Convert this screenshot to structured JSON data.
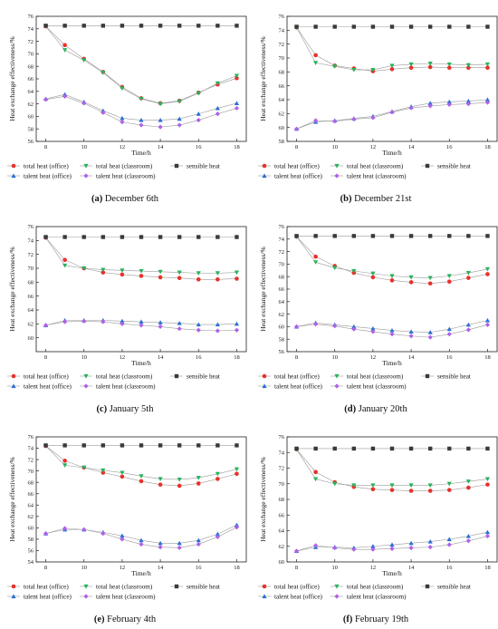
{
  "chart_data": [
    {
      "type": "line",
      "caption_letter": "(a)",
      "caption_text": " December 6th",
      "xlabel": "Time/h",
      "ylabel": "Heat exchange effectiveness/%",
      "x": [
        8,
        9,
        10,
        11,
        12,
        13,
        14,
        15,
        16,
        17,
        18
      ],
      "xlim": [
        7.5,
        18.5
      ],
      "ylim": [
        56,
        76
      ],
      "xticks": [
        8,
        10,
        12,
        14,
        16,
        18
      ],
      "yticks": [
        56,
        58,
        60,
        62,
        64,
        66,
        68,
        70,
        72,
        74,
        76
      ],
      "series": [
        {
          "name": "total heat (office)",
          "values": [
            74.4,
            71.4,
            69.2,
            67.1,
            64.7,
            62.9,
            62.1,
            62.5,
            63.8,
            65.1,
            66.1
          ]
        },
        {
          "name": "total heat (classroom)",
          "values": [
            74.4,
            70.6,
            69.0,
            67.0,
            64.5,
            62.8,
            62.0,
            62.4,
            63.7,
            65.3,
            66.5
          ]
        },
        {
          "name": "sensible heat",
          "values": [
            74.5,
            74.5,
            74.5,
            74.5,
            74.5,
            74.5,
            74.5,
            74.5,
            74.5,
            74.5,
            74.5
          ]
        },
        {
          "name": "talent heat (office)",
          "values": [
            62.8,
            63.5,
            62.3,
            60.9,
            59.7,
            59.4,
            59.4,
            59.6,
            60.4,
            61.3,
            62.1
          ]
        },
        {
          "name": "talent heat (classroom)",
          "values": [
            62.7,
            63.2,
            62.1,
            60.6,
            59.1,
            58.6,
            58.3,
            58.6,
            59.4,
            60.4,
            61.3
          ]
        }
      ]
    },
    {
      "type": "line",
      "caption_letter": "(b)",
      "caption_text": " December 21st",
      "xlabel": "Time/h",
      "ylabel": "Heat exchange effectiveness/%",
      "x": [
        8,
        9,
        10,
        11,
        12,
        13,
        14,
        15,
        16,
        17,
        18
      ],
      "xlim": [
        7.5,
        18.5
      ],
      "ylim": [
        58,
        76
      ],
      "xticks": [
        8,
        10,
        12,
        14,
        16,
        18
      ],
      "yticks": [
        58,
        60,
        62,
        64,
        66,
        68,
        70,
        72,
        74,
        76
      ],
      "series": [
        {
          "name": "total heat (office)",
          "values": [
            74.4,
            70.4,
            68.9,
            68.5,
            68.1,
            68.4,
            68.6,
            68.7,
            68.6,
            68.6,
            68.6
          ]
        },
        {
          "name": "total heat (classroom)",
          "values": [
            74.4,
            69.3,
            68.8,
            68.3,
            68.3,
            68.9,
            69.1,
            69.2,
            69.1,
            69.0,
            69.1
          ]
        },
        {
          "name": "sensible heat",
          "values": [
            74.5,
            74.5,
            74.5,
            74.5,
            74.5,
            74.5,
            74.5,
            74.5,
            74.5,
            74.5,
            74.5
          ]
        },
        {
          "name": "talent heat (office)",
          "values": [
            59.8,
            60.8,
            61.0,
            61.3,
            61.6,
            62.3,
            63.0,
            63.5,
            63.7,
            63.8,
            64.0
          ]
        },
        {
          "name": "talent heat (classroom)",
          "values": [
            59.8,
            61.0,
            60.9,
            61.2,
            61.4,
            62.2,
            62.8,
            63.1,
            63.3,
            63.4,
            63.6
          ]
        }
      ]
    },
    {
      "type": "line",
      "caption_letter": "(c)",
      "caption_text": " January 5th",
      "xlabel": "Time/h",
      "ylabel": "Heat exchange effectiveness/%",
      "x": [
        8,
        9,
        10,
        11,
        12,
        13,
        14,
        15,
        16,
        17,
        18
      ],
      "xlim": [
        7.5,
        18.5
      ],
      "ylim": [
        58,
        76
      ],
      "xticks": [
        8,
        10,
        12,
        14,
        16,
        18
      ],
      "yticks": [
        60,
        62,
        64,
        66,
        68,
        70,
        72,
        74,
        76
      ],
      "series": [
        {
          "name": "total heat (office)",
          "values": [
            74.4,
            71.2,
            70.0,
            69.4,
            69.1,
            68.9,
            68.7,
            68.6,
            68.4,
            68.4,
            68.5
          ]
        },
        {
          "name": "total heat (classroom)",
          "values": [
            74.4,
            70.4,
            70.0,
            69.8,
            69.7,
            69.6,
            69.5,
            69.4,
            69.3,
            69.3,
            69.4
          ]
        },
        {
          "name": "sensible heat",
          "values": [
            74.5,
            74.5,
            74.5,
            74.5,
            74.5,
            74.5,
            74.5,
            74.5,
            74.5,
            74.5,
            74.5
          ]
        },
        {
          "name": "talent heat (office)",
          "values": [
            61.8,
            62.5,
            62.5,
            62.5,
            62.4,
            62.3,
            62.2,
            62.1,
            61.9,
            61.9,
            62.0
          ]
        },
        {
          "name": "talent heat (classroom)",
          "values": [
            61.8,
            62.3,
            62.4,
            62.3,
            62.0,
            61.8,
            61.6,
            61.3,
            61.1,
            61.0,
            61.1
          ]
        }
      ]
    },
    {
      "type": "line",
      "caption_letter": "(d)",
      "caption_text": " January 20th",
      "xlabel": "Time/h",
      "ylabel": "Heat exchange effectiveness/%",
      "x": [
        8,
        9,
        10,
        11,
        12,
        13,
        14,
        15,
        16,
        17,
        18
      ],
      "xlim": [
        7.5,
        18.5
      ],
      "ylim": [
        56,
        76
      ],
      "xticks": [
        8,
        10,
        12,
        14,
        16,
        18
      ],
      "yticks": [
        56,
        58,
        60,
        62,
        64,
        66,
        68,
        70,
        72,
        74,
        76
      ],
      "series": [
        {
          "name": "total heat (office)",
          "values": [
            74.4,
            71.2,
            69.7,
            68.6,
            67.9,
            67.4,
            67.1,
            66.9,
            67.2,
            67.8,
            68.4
          ]
        },
        {
          "name": "total heat (classroom)",
          "values": [
            74.4,
            70.3,
            69.4,
            68.9,
            68.5,
            68.1,
            67.9,
            67.8,
            68.1,
            68.6,
            69.2
          ]
        },
        {
          "name": "sensible heat",
          "values": [
            74.5,
            74.5,
            74.5,
            74.5,
            74.5,
            74.5,
            74.5,
            74.5,
            74.5,
            74.5,
            74.5
          ]
        },
        {
          "name": "talent heat (office)",
          "values": [
            60.0,
            60.6,
            60.3,
            60.0,
            59.7,
            59.4,
            59.2,
            59.1,
            59.6,
            60.3,
            61.0
          ]
        },
        {
          "name": "talent heat (classroom)",
          "values": [
            60.0,
            60.4,
            60.1,
            59.6,
            59.2,
            58.8,
            58.5,
            58.3,
            58.8,
            59.5,
            60.3
          ]
        }
      ]
    },
    {
      "type": "line",
      "caption_letter": "(e)",
      "caption_text": " February 4th",
      "xlabel": "Time/h",
      "ylabel": "Heat exchange effectiveness/%",
      "x": [
        8,
        9,
        10,
        11,
        12,
        13,
        14,
        15,
        16,
        17,
        18
      ],
      "xlim": [
        7.5,
        18.5
      ],
      "ylim": [
        54,
        76
      ],
      "xticks": [
        8,
        10,
        12,
        14,
        16,
        18
      ],
      "yticks": [
        54,
        56,
        58,
        60,
        62,
        64,
        66,
        68,
        70,
        72,
        74,
        76
      ],
      "series": [
        {
          "name": "total heat (office)",
          "values": [
            74.4,
            71.8,
            70.6,
            69.7,
            69.0,
            68.2,
            67.6,
            67.4,
            67.8,
            68.6,
            69.5
          ]
        },
        {
          "name": "total heat (classroom)",
          "values": [
            74.4,
            71.0,
            70.6,
            70.1,
            69.7,
            69.1,
            68.6,
            68.5,
            68.8,
            69.5,
            70.3
          ]
        },
        {
          "name": "sensible heat",
          "values": [
            74.5,
            74.5,
            74.5,
            74.5,
            74.5,
            74.5,
            74.5,
            74.5,
            74.5,
            74.5,
            74.5
          ]
        },
        {
          "name": "talent heat (office)",
          "values": [
            59.0,
            59.7,
            59.7,
            59.2,
            58.6,
            57.8,
            57.3,
            57.3,
            57.8,
            58.9,
            60.5
          ]
        },
        {
          "name": "talent heat (classroom)",
          "values": [
            59.0,
            59.9,
            59.7,
            59.0,
            58.0,
            57.1,
            56.6,
            56.5,
            57.1,
            58.4,
            60.1
          ]
        }
      ]
    },
    {
      "type": "line",
      "caption_letter": "(f)",
      "caption_text": " February 19th",
      "xlabel": "Time/h",
      "ylabel": "Heat exchange effectiveness/%",
      "x": [
        8,
        9,
        10,
        11,
        12,
        13,
        14,
        15,
        16,
        17,
        18
      ],
      "xlim": [
        7.5,
        18.5
      ],
      "ylim": [
        60,
        76
      ],
      "xticks": [
        8,
        10,
        12,
        14,
        16,
        18
      ],
      "yticks": [
        60,
        62,
        64,
        66,
        68,
        70,
        72,
        74,
        76
      ],
      "series": [
        {
          "name": "total heat (office)",
          "values": [
            74.4,
            71.5,
            70.2,
            69.6,
            69.3,
            69.2,
            69.1,
            69.1,
            69.2,
            69.5,
            69.9
          ]
        },
        {
          "name": "total heat (classroom)",
          "values": [
            74.4,
            70.6,
            70.0,
            69.8,
            69.8,
            69.8,
            69.8,
            69.8,
            70.0,
            70.3,
            70.6
          ]
        },
        {
          "name": "sensible heat",
          "values": [
            74.5,
            74.5,
            74.5,
            74.5,
            74.5,
            74.5,
            74.5,
            74.5,
            74.5,
            74.5,
            74.5
          ]
        },
        {
          "name": "talent heat (office)",
          "values": [
            61.4,
            61.9,
            61.9,
            61.8,
            62.0,
            62.2,
            62.4,
            62.6,
            62.9,
            63.3,
            63.8
          ]
        },
        {
          "name": "talent heat (classroom)",
          "values": [
            61.4,
            62.1,
            61.8,
            61.6,
            61.6,
            61.7,
            61.8,
            61.9,
            62.2,
            62.7,
            63.3
          ]
        }
      ]
    }
  ],
  "style": {
    "colors": [
      "#e8312a",
      "#27b35a",
      "#3a3a3a",
      "#2a6fd6",
      "#b061e8"
    ],
    "line_color": "#9a9a9a",
    "markers": [
      "circle",
      "triangle-down",
      "square",
      "triangle-up",
      "diamond"
    ]
  }
}
